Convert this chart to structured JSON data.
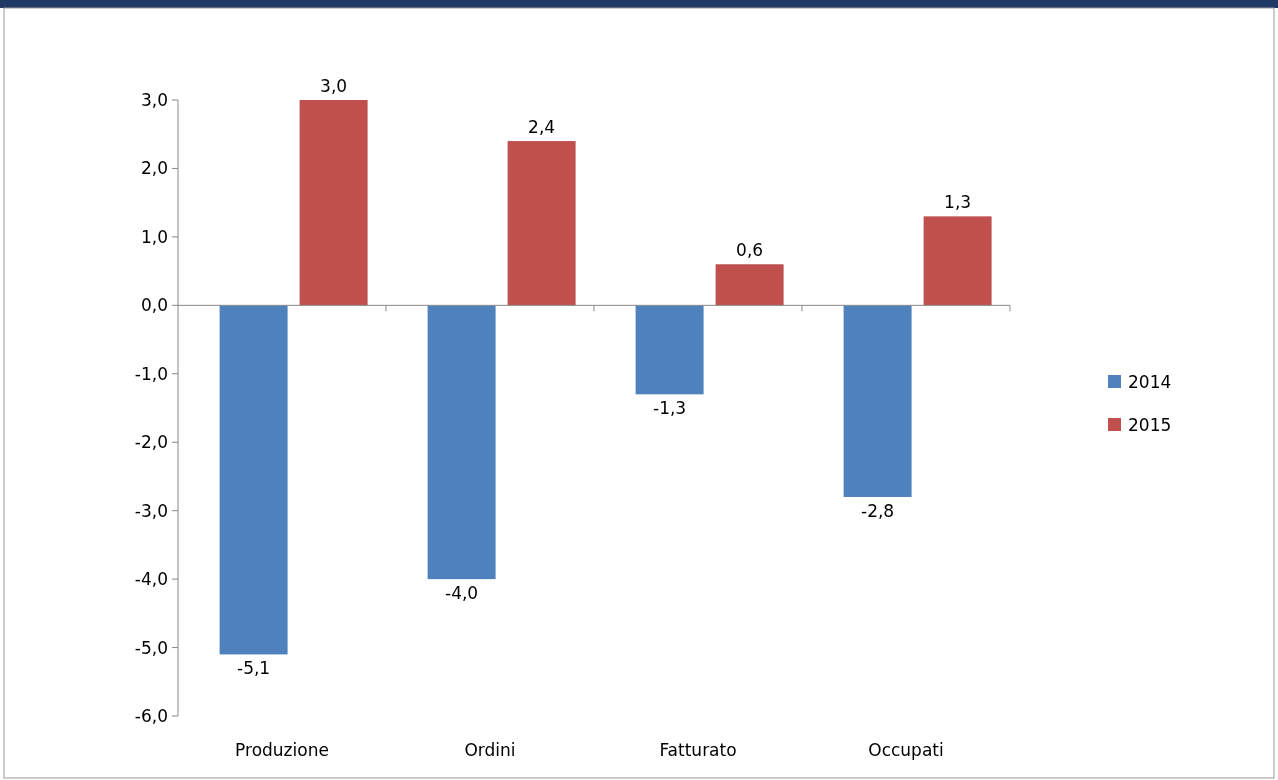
{
  "chart_data": {
    "type": "bar",
    "categories": [
      "Produzione",
      "Ordini",
      "Fatturato",
      "Occupati"
    ],
    "series": [
      {
        "name": "2014",
        "color": "#4f81bd",
        "values": [
          -5.1,
          -4.0,
          -1.3,
          -2.8
        ],
        "value_labels": [
          "-5,1",
          "-4,0",
          "-1,3",
          "-2,8"
        ]
      },
      {
        "name": "2015",
        "color": "#c0504d",
        "values": [
          3.0,
          2.4,
          0.6,
          1.3
        ],
        "value_labels": [
          "3,0",
          "2,4",
          "0,6",
          "1,3"
        ]
      }
    ],
    "ylim": [
      -6,
      3
    ],
    "yticks": [
      {
        "value": -6,
        "label": "-6,0"
      },
      {
        "value": -5,
        "label": "-5,0"
      },
      {
        "value": -4,
        "label": "-4,0"
      },
      {
        "value": -3,
        "label": "-3,0"
      },
      {
        "value": -2,
        "label": "-2,0"
      },
      {
        "value": -1,
        "label": "-1,0"
      },
      {
        "value": 0,
        "label": "0,0"
      },
      {
        "value": 1,
        "label": "1,0"
      },
      {
        "value": 2,
        "label": "2,0"
      },
      {
        "value": 3,
        "label": "3,0"
      }
    ],
    "legend": "right"
  }
}
